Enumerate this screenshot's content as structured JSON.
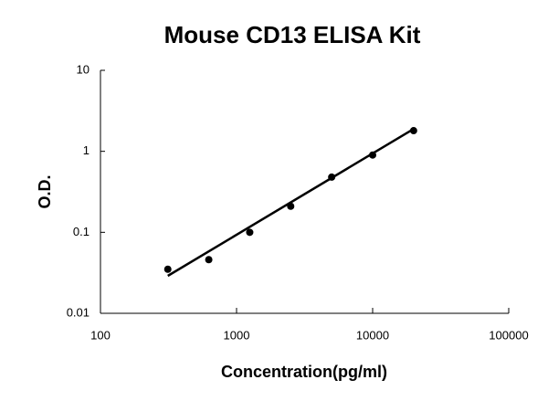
{
  "chart_data": {
    "type": "scatter",
    "title": "Mouse CD13 ELISA Kit",
    "x_label": "Concentration(pg/ml)",
    "y_label": "O.D.",
    "x": [
      312.5,
      625,
      1250,
      2500,
      5000,
      10000,
      20000
    ],
    "values": [
      0.035,
      0.046,
      0.1,
      0.21,
      0.48,
      0.9,
      1.8
    ],
    "color": "#000000",
    "trendline": {
      "x": [
        312.5,
        20000
      ],
      "y": [
        0.029,
        1.89
      ]
    },
    "xlim": [
      100,
      100000
    ],
    "xticks": [
      100,
      1000,
      10000,
      100000
    ],
    "ylim": [
      0.01,
      10
    ],
    "yticks": [
      0.01,
      0.1,
      1,
      10
    ],
    "xscale": "log",
    "yscale": "log",
    "grid": false
  }
}
